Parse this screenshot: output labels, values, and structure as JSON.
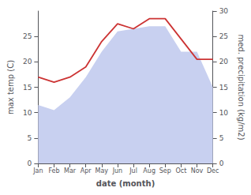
{
  "chart_data": {
    "type": "line",
    "xlabel": "date (month)",
    "ylabel": "max temp (C)",
    "y2label": "med. precipitation (kg/m2)",
    "categories": [
      "Jan",
      "Feb",
      "Mar",
      "Apr",
      "May",
      "Jun",
      "Jul",
      "Aug",
      "Sep",
      "Oct",
      "Nov",
      "Dec"
    ],
    "series": [
      {
        "type": "area",
        "color": "#c8d0f0",
        "values": [
          11.5,
          10.5,
          13.0,
          17.0,
          22.0,
          26.0,
          26.5,
          27.0,
          27.0,
          22.0,
          22.0,
          15.0
        ]
      },
      {
        "type": "line",
        "color": "#cc3333",
        "axis": "y2",
        "values": [
          17.0,
          16.0,
          17.0,
          19.0,
          24.0,
          27.5,
          26.5,
          28.5,
          28.5,
          24.5,
          20.5,
          20.5
        ]
      }
    ],
    "ylim": [
      0,
      30
    ],
    "yticks": [
      0,
      5,
      10,
      15,
      20,
      25
    ],
    "y2lim": [
      0,
      30
    ],
    "y2ticks": [
      0,
      5,
      10,
      15,
      20,
      25,
      30
    ],
    "grid": false
  }
}
